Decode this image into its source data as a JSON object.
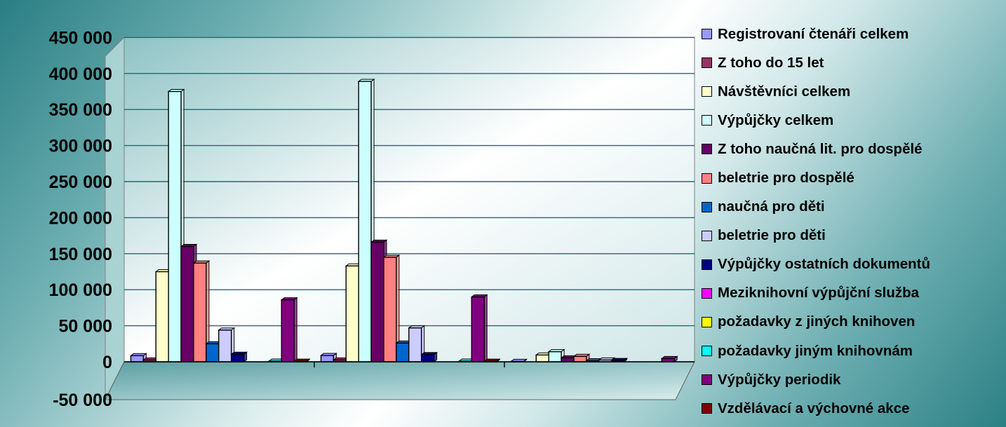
{
  "chart_data": {
    "type": "bar",
    "title": "",
    "xlabel": "",
    "ylabel": "",
    "ylim": [
      -50000,
      450000
    ],
    "yticks": [
      -50000,
      0,
      50000,
      100000,
      150000,
      200000,
      250000,
      300000,
      350000,
      400000,
      450000
    ],
    "ytick_labels": [
      "-50 000",
      "0",
      "50 000",
      "100 000",
      "150 000",
      "200 000",
      "250 000",
      "300 000",
      "350 000",
      "400 000",
      "450 000"
    ],
    "categories": [
      "",
      "",
      ""
    ],
    "grid": true,
    "legend_position": "right",
    "series": [
      {
        "name": "Registrovaní čtenáři celkem",
        "color": "#9999ff",
        "values": [
          8500,
          8700,
          600
        ]
      },
      {
        "name": "Z toho do 15 let",
        "color": "#993366",
        "values": [
          2500,
          2600,
          200
        ]
      },
      {
        "name": "Návštěvníci celkem",
        "color": "#ffffcc",
        "values": [
          125000,
          133000,
          9500
        ]
      },
      {
        "name": "Výpůjčky celkem",
        "color": "#ccffff",
        "values": [
          375000,
          389000,
          14000
        ]
      },
      {
        "name": "Z toho naučná lit. pro dospělé",
        "color": "#660066",
        "values": [
          160000,
          166000,
          5500
        ]
      },
      {
        "name": "beletrie pro dospělé",
        "color": "#ff8080",
        "values": [
          137000,
          145000,
          7500
        ]
      },
      {
        "name": "naučná pro děti",
        "color": "#0066cc",
        "values": [
          25000,
          26000,
          1500
        ]
      },
      {
        "name": "beletrie pro děti",
        "color": "#ccccff",
        "values": [
          44000,
          47000,
          2500
        ]
      },
      {
        "name": "Výpůjčky ostatních dokumentů",
        "color": "#000080",
        "values": [
          10500,
          10000,
          1800
        ]
      },
      {
        "name": "Meziknihovní výpůjční služba",
        "color": "#ff00ff",
        "values": [
          300,
          300,
          50
        ]
      },
      {
        "name": "požadavky z jiných knihoven",
        "color": "#ffff00",
        "values": [
          200,
          200,
          30
        ]
      },
      {
        "name": "požadavky jiným knihovnám",
        "color": "#00ffff",
        "values": [
          1000,
          1000,
          100
        ]
      },
      {
        "name": "Výpůjčky periodik",
        "color": "#800080",
        "values": [
          86000,
          90000,
          4500
        ]
      },
      {
        "name": "Vzdělávací a výchovné akce",
        "color": "#800000",
        "values": [
          800,
          800,
          100
        ]
      }
    ]
  }
}
